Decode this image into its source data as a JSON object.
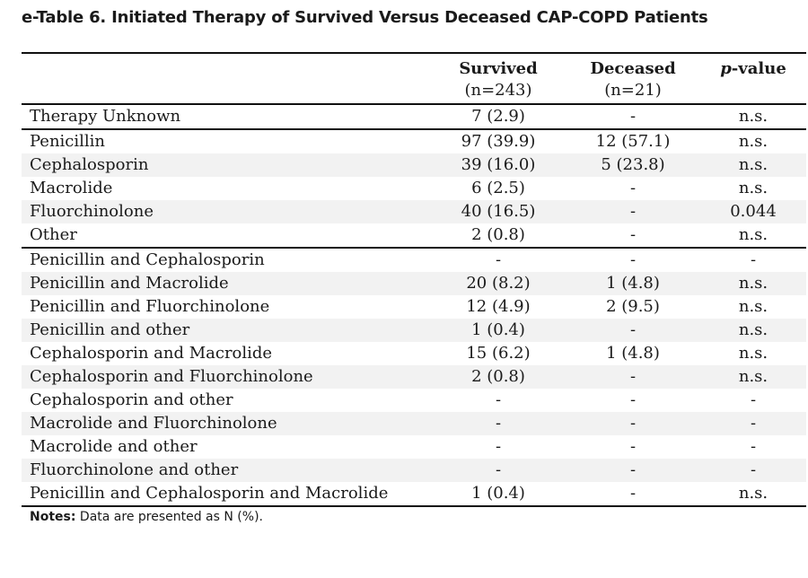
{
  "title": "e-Table 6. Initiated Therapy of Survived Versus Deceased CAP-COPD Patients",
  "columns": {
    "survived": {
      "name": "Survived",
      "n": "(n=243)"
    },
    "deceased": {
      "name": "Deceased",
      "n": "(n=21)"
    },
    "pvalue": {
      "italic": "p",
      "rest": "-value"
    }
  },
  "rows": [
    {
      "label": "Therapy Unknown",
      "survived": "7 (2.9)",
      "deceased": "-",
      "p": "n.s."
    },
    {
      "label": "Penicillin",
      "survived": "97 (39.9)",
      "deceased": "12 (57.1)",
      "p": "n.s."
    },
    {
      "label": "Cephalosporin",
      "survived": "39 (16.0)",
      "deceased": "5 (23.8)",
      "p": "n.s."
    },
    {
      "label": "Macrolide",
      "survived": "6 (2.5)",
      "deceased": "-",
      "p": "n.s."
    },
    {
      "label": "Fluorchinolone",
      "survived": "40 (16.5)",
      "deceased": "-",
      "p": "0.044"
    },
    {
      "label": "Other",
      "survived": "2 (0.8)",
      "deceased": "-",
      "p": "n.s."
    },
    {
      "label": "Penicillin and Cephalosporin",
      "survived": "-",
      "deceased": "-",
      "p": "-"
    },
    {
      "label": "Penicillin and Macrolide",
      "survived": "20 (8.2)",
      "deceased": "1 (4.8)",
      "p": "n.s."
    },
    {
      "label": "Penicillin and Fluorchinolone",
      "survived": "12 (4.9)",
      "deceased": "2 (9.5)",
      "p": "n.s."
    },
    {
      "label": "Penicillin and other",
      "survived": "1 (0.4)",
      "deceased": "-",
      "p": "n.s."
    },
    {
      "label": "Cephalosporin and Macrolide",
      "survived": "15 (6.2)",
      "deceased": "1 (4.8)",
      "p": "n.s."
    },
    {
      "label": "Cephalosporin and Fluorchinolone",
      "survived": "2 (0.8)",
      "deceased": "-",
      "p": "n.s."
    },
    {
      "label": "Cephalosporin and other",
      "survived": "-",
      "deceased": "-",
      "p": "-"
    },
    {
      "label": "Macrolide and Fluorchinolone",
      "survived": "-",
      "deceased": "-",
      "p": "-"
    },
    {
      "label": "Macrolide and other",
      "survived": "-",
      "deceased": "-",
      "p": "-"
    },
    {
      "label": "Fluorchinolone and other",
      "survived": "-",
      "deceased": "-",
      "p": "-"
    },
    {
      "label": "Penicillin and Cephalosporin and Macrolide",
      "survived": "1 (0.4)",
      "deceased": "-",
      "p": "n.s."
    }
  ],
  "notes": {
    "label": "Notes:",
    "text": " Data are presented as N (%)."
  }
}
